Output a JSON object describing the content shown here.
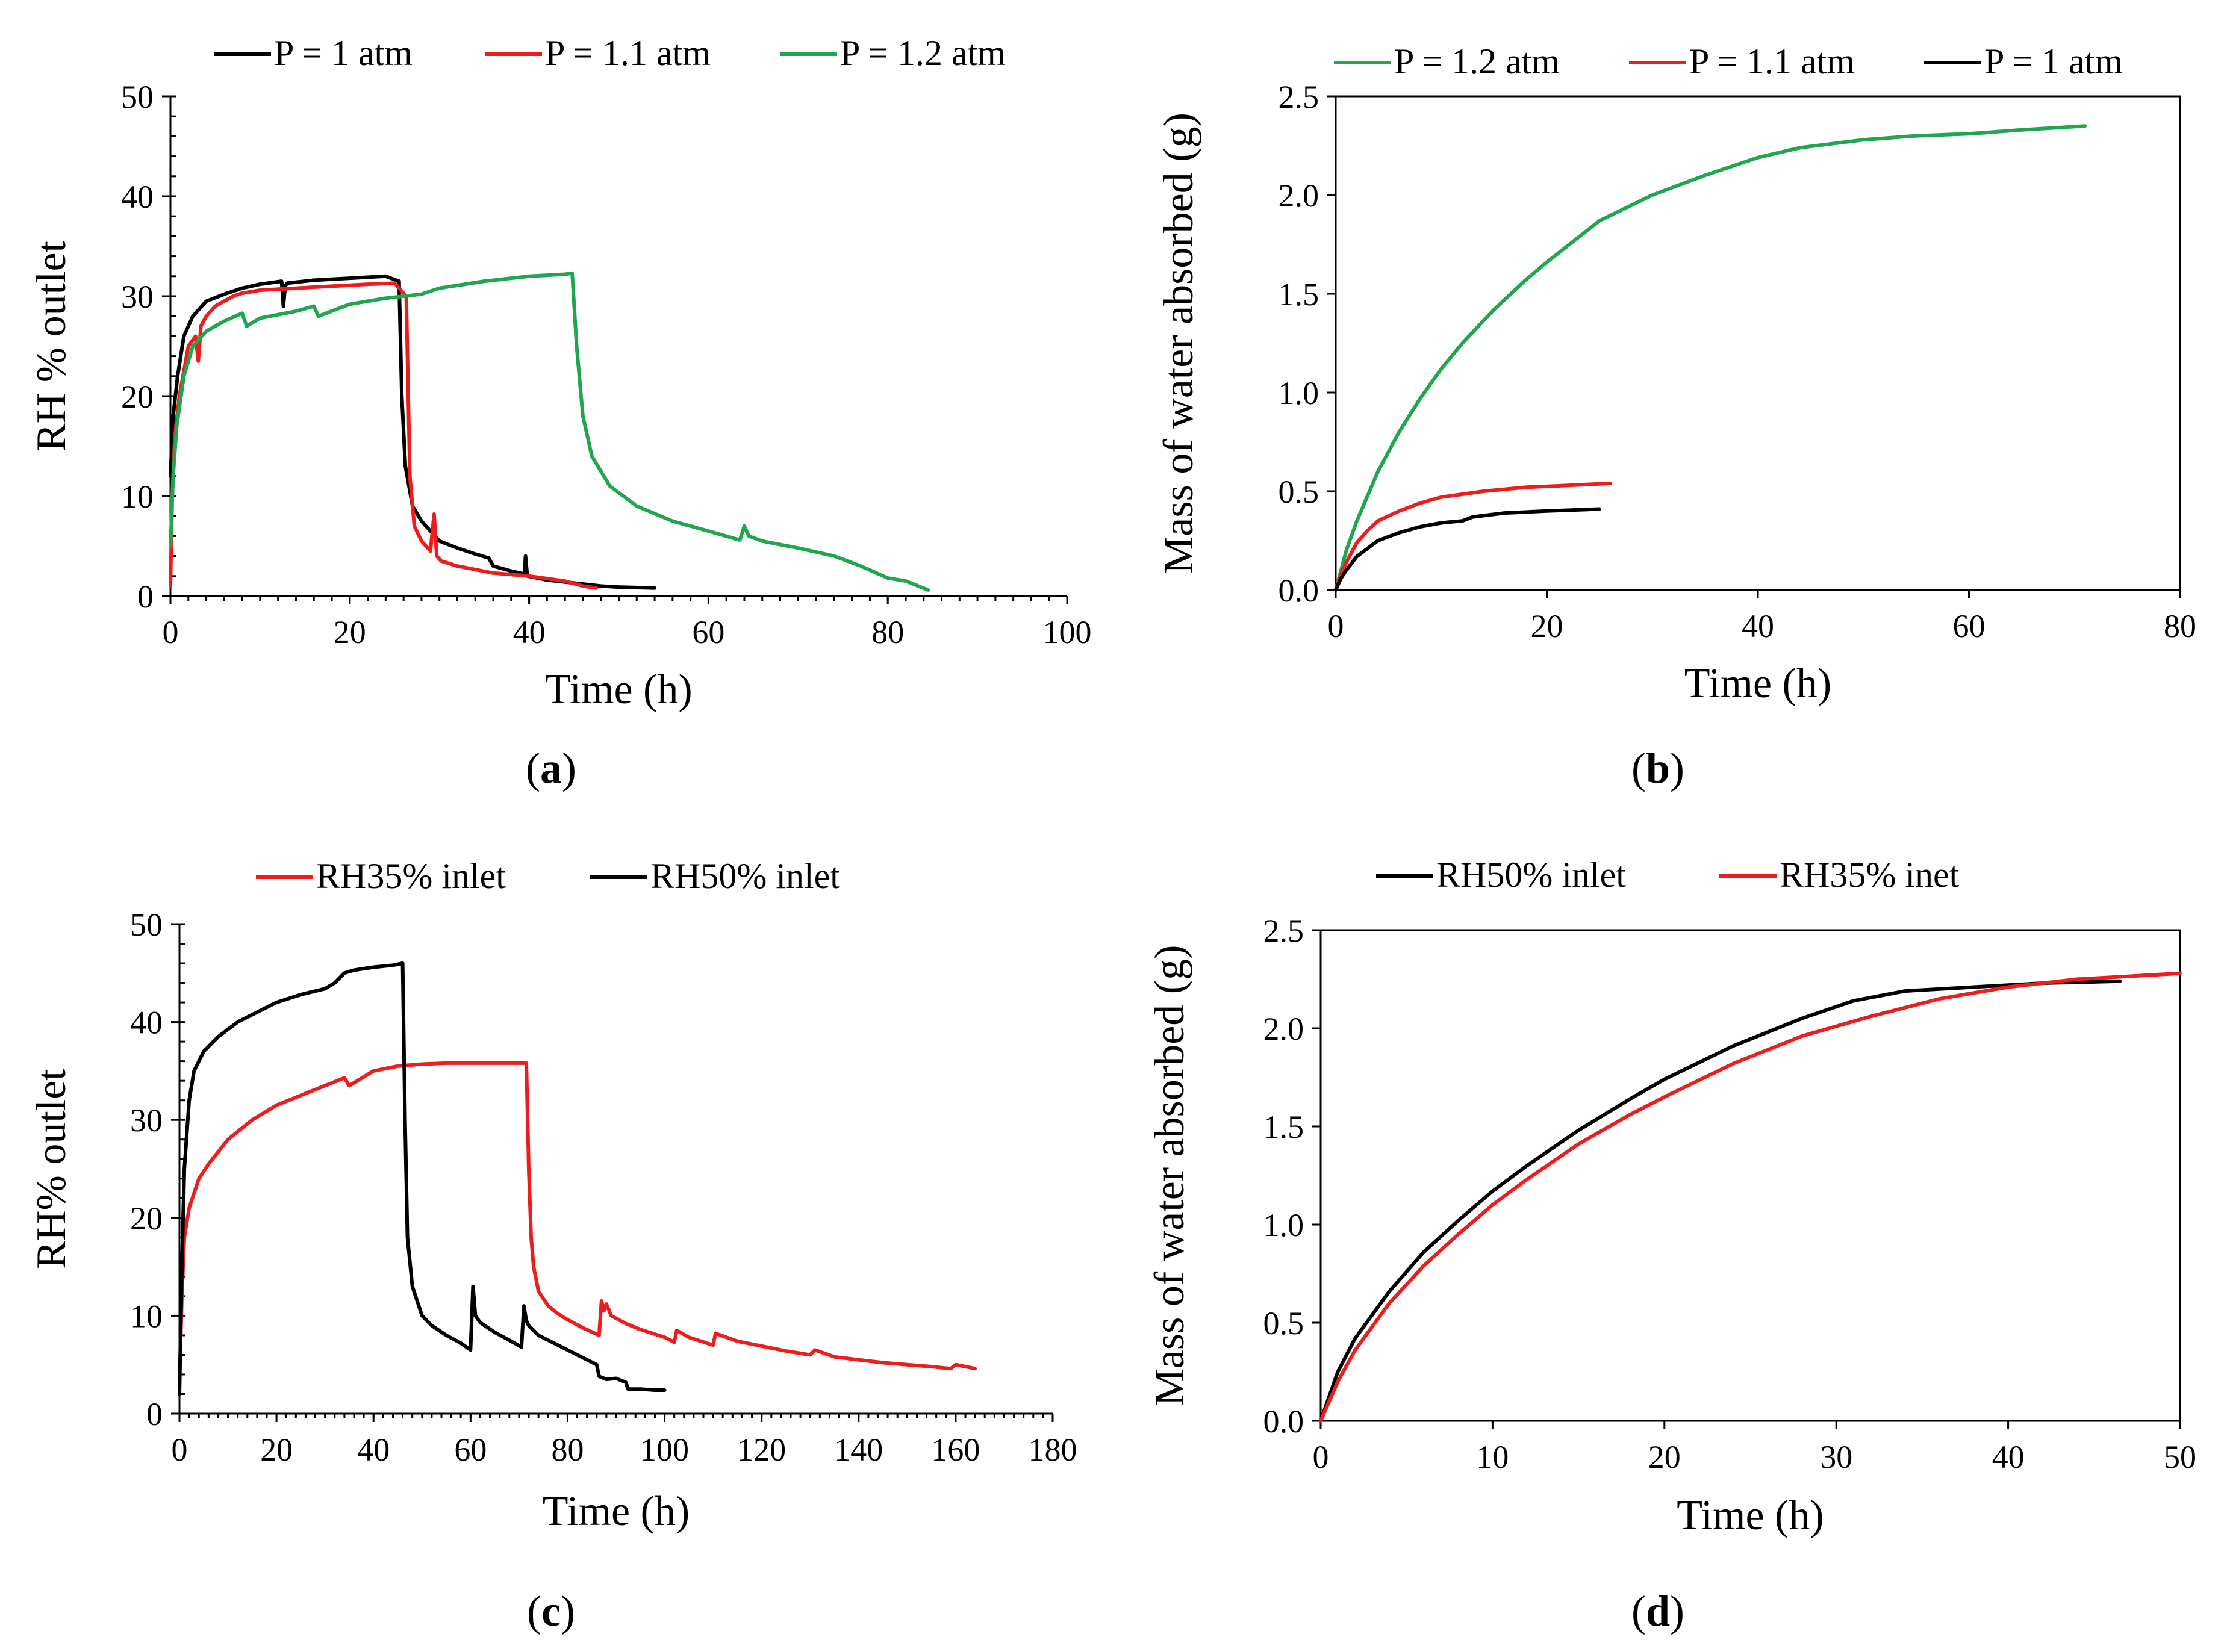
{
  "colors": {
    "black": "#000000",
    "red": "#ee1c1c",
    "green": "#1fa64f"
  },
  "chart_data": [
    {
      "id": "a",
      "type": "line",
      "panel_label": "(a)",
      "xlabel": "Time (h)",
      "ylabel": "RH % outlet",
      "xlim": [
        0,
        100
      ],
      "ylim": [
        0,
        50
      ],
      "xticks": [
        0,
        20,
        40,
        60,
        80,
        100
      ],
      "yticks": [
        0,
        10,
        20,
        30,
        40,
        50
      ],
      "legend": "top",
      "series": [
        {
          "name": "P = 1 atm",
          "color": "#000000",
          "x": [
            0,
            0.3,
            0.8,
            1.5,
            2.5,
            4,
            6,
            8,
            10,
            12.4,
            12.6,
            12.8,
            13,
            16,
            20,
            24,
            25.5,
            25.8,
            26.2,
            27,
            28,
            29,
            30,
            32,
            34,
            35.5,
            36,
            38,
            39.5,
            39.6,
            39.8,
            42,
            45,
            48,
            50,
            54
          ],
          "y": [
            12,
            18,
            22,
            26,
            28,
            29.5,
            30.2,
            30.8,
            31.2,
            31.5,
            29,
            31,
            31.3,
            31.6,
            31.8,
            32,
            31.5,
            20,
            13,
            9,
            7.5,
            6.5,
            5.5,
            4.8,
            4.2,
            3.8,
            3,
            2.5,
            2.2,
            4,
            2,
            1.6,
            1.3,
            1,
            0.9,
            0.8
          ]
        },
        {
          "name": "P = 1.1 atm",
          "color": "#ee1c1c",
          "x": [
            0,
            0.2,
            0.5,
            1,
            2,
            2.8,
            3.1,
            3.4,
            4,
            5,
            6,
            7,
            8,
            10,
            14,
            18,
            22,
            25,
            26.3,
            26.7,
            27.2,
            28,
            29,
            29.4,
            29.7,
            30.2,
            32,
            36,
            40,
            44,
            46,
            47.5
          ],
          "y": [
            1,
            10,
            16,
            20,
            25,
            26,
            23.5,
            27,
            28,
            29,
            29.5,
            30,
            30.3,
            30.6,
            30.8,
            31,
            31.2,
            31.3,
            30,
            12,
            7,
            5.5,
            4.5,
            8.2,
            4,
            3.5,
            3,
            2.3,
            2,
            1.5,
            1,
            0.8
          ]
        },
        {
          "name": "P = 1.2 atm",
          "color": "#1fa64f",
          "x": [
            0,
            0.3,
            0.7,
            1.5,
            2.5,
            4,
            6,
            8,
            8.5,
            10,
            14,
            16,
            16.5,
            20,
            24,
            28,
            30,
            35,
            40,
            44,
            44.8,
            45.3,
            46,
            47,
            49,
            52,
            56,
            60,
            63.5,
            64,
            64.5,
            66,
            70,
            74,
            77,
            80,
            82,
            84.5
          ],
          "y": [
            5,
            12,
            17,
            22,
            25,
            26.5,
            27.5,
            28.3,
            27,
            27.8,
            28.5,
            29,
            28,
            29.2,
            29.8,
            30.2,
            30.8,
            31.5,
            32,
            32.2,
            32.3,
            25,
            18,
            14,
            11,
            9,
            7.5,
            6.5,
            5.6,
            7,
            6,
            5.5,
            4.8,
            4,
            3,
            1.8,
            1.5,
            0.6
          ]
        }
      ]
    },
    {
      "id": "b",
      "type": "line",
      "panel_label": "(b)",
      "xlabel": "Time (h)",
      "ylabel": "Mass of water absorbed (g)",
      "xlim": [
        0,
        80
      ],
      "ylim": [
        0,
        2.5
      ],
      "xticks": [
        0,
        20,
        40,
        60,
        80
      ],
      "yticks": [
        0.0,
        0.5,
        1.0,
        1.5,
        2.0,
        2.5
      ],
      "legend": "top",
      "series": [
        {
          "name": "P = 1.2 atm",
          "color": "#1fa64f",
          "x": [
            0,
            1,
            2,
            4,
            6,
            8,
            10,
            12,
            15,
            18,
            20,
            25,
            30,
            35,
            40,
            44,
            50,
            55,
            60,
            65,
            71
          ],
          "y": [
            0,
            0.2,
            0.35,
            0.6,
            0.8,
            0.97,
            1.12,
            1.25,
            1.42,
            1.57,
            1.66,
            1.87,
            2.0,
            2.1,
            2.19,
            2.24,
            2.28,
            2.3,
            2.31,
            2.33,
            2.35
          ]
        },
        {
          "name": "P = 1.1 atm",
          "color": "#ee1c1c",
          "x": [
            0,
            0.5,
            1,
            2,
            3,
            4,
            6,
            8,
            10,
            14,
            18,
            22,
            26
          ],
          "y": [
            0,
            0.08,
            0.14,
            0.24,
            0.3,
            0.35,
            0.4,
            0.44,
            0.47,
            0.5,
            0.52,
            0.53,
            0.54
          ]
        },
        {
          "name": "P = 1 atm",
          "color": "#000000",
          "x": [
            0,
            0.5,
            1,
            2,
            3,
            4,
            6,
            8,
            10,
            12,
            13,
            16,
            20,
            25
          ],
          "y": [
            0,
            0.06,
            0.1,
            0.17,
            0.21,
            0.25,
            0.29,
            0.32,
            0.34,
            0.35,
            0.37,
            0.39,
            0.4,
            0.41
          ]
        }
      ]
    },
    {
      "id": "c",
      "type": "line",
      "panel_label": "(c)",
      "xlabel": "Time (h)",
      "ylabel": "RH% outlet",
      "xlim": [
        0,
        180
      ],
      "ylim": [
        0,
        50
      ],
      "xticks": [
        0,
        20,
        40,
        60,
        80,
        100,
        120,
        140,
        160,
        180
      ],
      "yticks": [
        0,
        10,
        20,
        30,
        40,
        50
      ],
      "legend": "top",
      "series": [
        {
          "name": "RH35% inlet",
          "color": "#ee1c1c",
          "x": [
            0,
            0.5,
            1,
            2,
            4,
            6,
            10,
            15,
            20,
            25,
            30,
            34,
            35,
            40,
            45,
            50,
            55,
            60,
            65,
            71.5,
            72,
            72.5,
            73,
            74,
            76,
            78,
            80,
            83,
            86.5,
            87,
            87.5,
            88,
            89,
            92,
            95,
            100,
            102,
            102.5,
            105,
            110,
            110.5,
            115,
            120,
            125,
            130,
            131,
            135,
            140,
            145,
            150,
            155,
            159,
            160,
            164
          ],
          "y": [
            3,
            12,
            18,
            21,
            24,
            25.5,
            28,
            30,
            31.5,
            32.5,
            33.5,
            34.3,
            33.5,
            35,
            35.5,
            35.7,
            35.8,
            35.8,
            35.8,
            35.8,
            25,
            18,
            15,
            12.5,
            11,
            10.2,
            9.6,
            8.8,
            8,
            11.5,
            10.5,
            11.2,
            10,
            9.2,
            8.6,
            7.8,
            7.3,
            8.5,
            7.8,
            7,
            8.2,
            7.4,
            6.9,
            6.4,
            6,
            6.5,
            5.8,
            5.5,
            5.2,
            5,
            4.8,
            4.6,
            5,
            4.6
          ]
        },
        {
          "name": "RH50% inlet",
          "color": "#000000",
          "x": [
            0,
            0.5,
            1,
            2,
            3,
            5,
            8,
            12,
            16,
            20,
            25,
            30,
            32,
            33,
            34,
            36,
            40,
            44,
            46,
            46.5,
            47,
            48,
            50,
            52,
            55,
            58,
            60,
            60.5,
            61,
            62,
            65,
            68,
            70.5,
            71,
            71.5,
            72,
            74,
            78,
            82,
            84,
            86,
            86.5,
            88,
            90,
            92,
            92.5,
            95,
            98,
            100
          ],
          "y": [
            2,
            15,
            25,
            32,
            35,
            37,
            38.5,
            40,
            41,
            42,
            42.8,
            43.4,
            44,
            44.5,
            45,
            45.3,
            45.6,
            45.8,
            46,
            30,
            18,
            13,
            10,
            9,
            8,
            7.2,
            6.5,
            13,
            10,
            9.3,
            8.3,
            7.5,
            6.8,
            11,
            9.5,
            9,
            8,
            7,
            6,
            5.5,
            5,
            3.8,
            3.5,
            3.6,
            3.2,
            2.5,
            2.5,
            2.4,
            2.4
          ]
        }
      ]
    },
    {
      "id": "d",
      "type": "line",
      "panel_label": "(d)",
      "xlabel": "Time (h)",
      "ylabel": "Mass of water absorbed (g)",
      "xlim": [
        0,
        50
      ],
      "ylim": [
        0,
        2.5
      ],
      "xticks": [
        0,
        10,
        20,
        30,
        40,
        50
      ],
      "yticks": [
        0.0,
        0.5,
        1.0,
        1.5,
        2.0,
        2.5
      ],
      "legend": "top",
      "series": [
        {
          "name": "RH50% inlet",
          "color": "#000000",
          "x": [
            0,
            1,
            2,
            4,
            6,
            8,
            10,
            12,
            15,
            18,
            20,
            24,
            28,
            31,
            34,
            38,
            42,
            46.5
          ],
          "y": [
            0,
            0.25,
            0.42,
            0.66,
            0.86,
            1.02,
            1.17,
            1.3,
            1.48,
            1.64,
            1.74,
            1.91,
            2.05,
            2.14,
            2.19,
            2.21,
            2.23,
            2.24
          ]
        },
        {
          "name": "RH35% inet",
          "color": "#ee1c1c",
          "x": [
            0,
            1,
            2,
            4,
            6,
            8,
            10,
            12,
            15,
            18,
            20,
            24,
            28,
            32,
            36,
            40,
            44,
            48,
            50
          ],
          "y": [
            0,
            0.2,
            0.36,
            0.6,
            0.79,
            0.95,
            1.1,
            1.23,
            1.41,
            1.56,
            1.65,
            1.82,
            1.96,
            2.06,
            2.15,
            2.21,
            2.25,
            2.27,
            2.28
          ]
        }
      ]
    }
  ]
}
